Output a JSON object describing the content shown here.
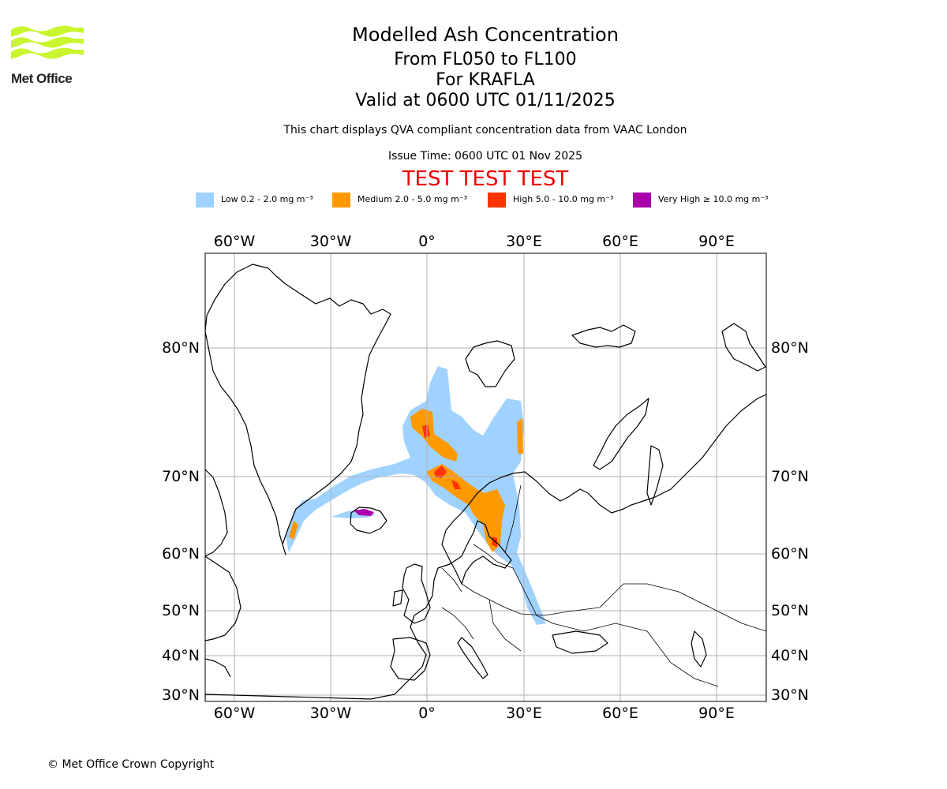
{
  "branding": {
    "logo_text": "Met Office",
    "logo_color": "#c8f52e"
  },
  "header": {
    "title": "Modelled Ash Concentration",
    "levels": "From FL050 to FL100",
    "volcano": "For KRAFLA",
    "valid": "Valid at 0600 UTC 01/11/2025",
    "note": "This chart displays QVA compliant concentration data from VAAC London",
    "issue": "Issue Time: 0600 UTC 01 Nov 2025",
    "test_banner": "TEST TEST TEST"
  },
  "legend": [
    {
      "label": "Low 0.2 - 2.0 mg m⁻³",
      "color": "#a0d2ff"
    },
    {
      "label": "Medium 2.0 - 5.0 mg m⁻³",
      "color": "#ff9900"
    },
    {
      "label": "High 5.0 - 10.0 mg m⁻³",
      "color": "#ff3300"
    },
    {
      "label": "Very High  ≥  10.0 mg m⁻³",
      "color": "#aa00aa"
    }
  ],
  "map": {
    "lon_labels": [
      "60°W",
      "30°W",
      "0°",
      "30°E",
      "60°E",
      "90°E"
    ],
    "lat_labels": [
      "80°N",
      "70°N",
      "60°N",
      "50°N",
      "40°N",
      "30°N"
    ]
  },
  "footer": {
    "copyright": "© Met Office Crown Copyright"
  }
}
